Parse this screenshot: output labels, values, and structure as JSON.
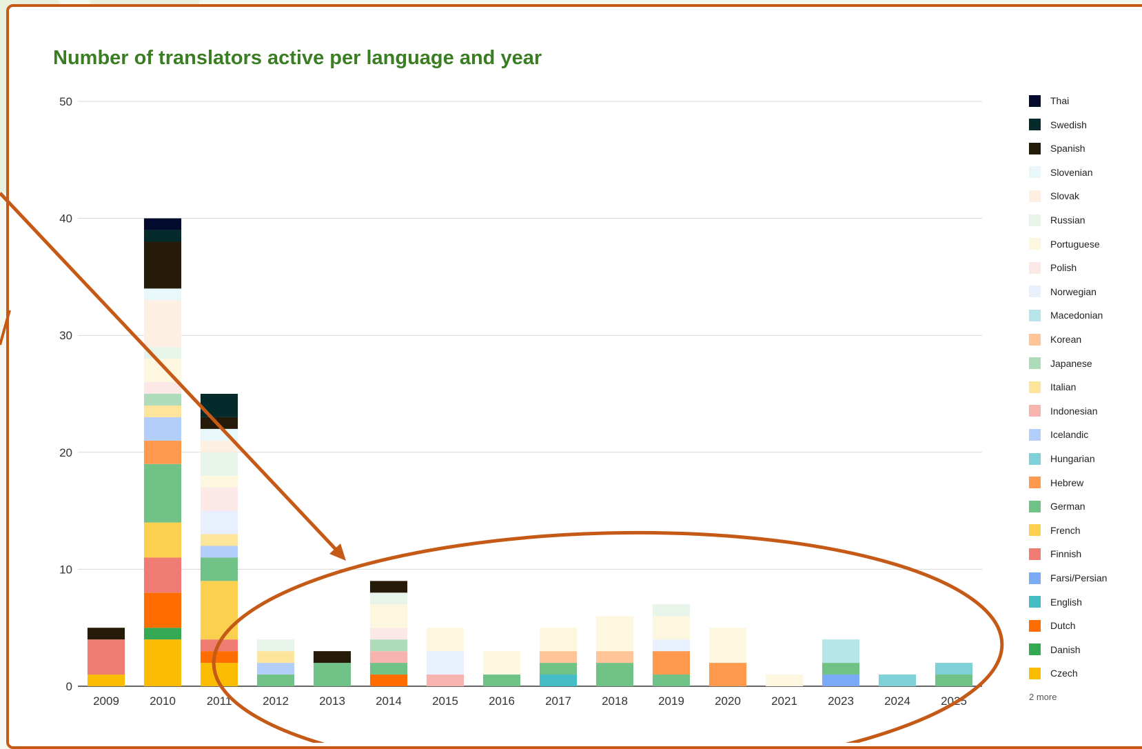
{
  "chart_data": {
    "type": "bar",
    "stacked": true,
    "title": "Number of translators active per language and year",
    "xlabel": "",
    "ylabel": "",
    "ylim": [
      0,
      50
    ],
    "yticks": [
      0,
      10,
      20,
      30,
      40,
      50
    ],
    "grid": true,
    "legend_position": "right",
    "categories": [
      "2009",
      "2010",
      "2011",
      "2012",
      "2013",
      "2014",
      "2015",
      "2016",
      "2017",
      "2018",
      "2019",
      "2020",
      "2021",
      "2023",
      "2024",
      "2025"
    ],
    "series": [
      {
        "name": "Czech",
        "color": "#fbbc04",
        "values": [
          1,
          4,
          2,
          0,
          0,
          0,
          0,
          0,
          0,
          0,
          0,
          0,
          0,
          0,
          0,
          0
        ]
      },
      {
        "name": "Danish",
        "color": "#34a853",
        "values": [
          0,
          1,
          0,
          0,
          0,
          0,
          0,
          0,
          0,
          0,
          0,
          0,
          0,
          0,
          0,
          0
        ]
      },
      {
        "name": "Dutch",
        "color": "#ff6d01",
        "values": [
          0,
          3,
          1,
          0,
          0,
          1,
          0,
          0,
          0,
          0,
          0,
          0,
          0,
          0,
          0,
          0
        ]
      },
      {
        "name": "English",
        "color": "#46bdc6",
        "values": [
          0,
          0,
          0,
          0,
          0,
          0,
          0,
          0,
          1,
          0,
          0,
          0,
          0,
          0,
          0,
          0
        ]
      },
      {
        "name": "Farsi/Persian",
        "color": "#7baaf7",
        "values": [
          0,
          0,
          0,
          0,
          0,
          0,
          0,
          0,
          0,
          0,
          0,
          0,
          0,
          1,
          0,
          0
        ]
      },
      {
        "name": "Finnish",
        "color": "#f07b72",
        "values": [
          3,
          3,
          1,
          0,
          0,
          0,
          0,
          0,
          0,
          0,
          0,
          0,
          0,
          0,
          0,
          0
        ]
      },
      {
        "name": "French",
        "color": "#fcd04f",
        "values": [
          0,
          3,
          5,
          0,
          0,
          0,
          0,
          0,
          0,
          0,
          0,
          0,
          0,
          0,
          0,
          0
        ]
      },
      {
        "name": "German",
        "color": "#71c287",
        "values": [
          0,
          5,
          2,
          1,
          2,
          1,
          0,
          1,
          1,
          2,
          1,
          0,
          0,
          1,
          0,
          1
        ]
      },
      {
        "name": "Hebrew",
        "color": "#ff994d",
        "values": [
          0,
          2,
          0,
          0,
          0,
          0,
          0,
          0,
          0,
          0,
          2,
          2,
          0,
          0,
          0,
          0
        ]
      },
      {
        "name": "Hungarian",
        "color": "#7ed1d7",
        "values": [
          0,
          0,
          0,
          0,
          0,
          0,
          0,
          0,
          0,
          0,
          0,
          0,
          0,
          0,
          1,
          1
        ]
      },
      {
        "name": "Icelandic",
        "color": "#b3cefb",
        "values": [
          0,
          2,
          1,
          1,
          0,
          0,
          0,
          0,
          0,
          0,
          0,
          0,
          0,
          0,
          0,
          0
        ]
      },
      {
        "name": "Indonesian",
        "color": "#f7b4ae",
        "values": [
          0,
          0,
          0,
          0,
          0,
          1,
          1,
          0,
          0,
          0,
          0,
          0,
          0,
          0,
          0,
          0
        ]
      },
      {
        "name": "Italian",
        "color": "#fde49b",
        "values": [
          0,
          1,
          1,
          1,
          0,
          0,
          0,
          0,
          0,
          0,
          0,
          0,
          0,
          0,
          0,
          0
        ]
      },
      {
        "name": "Japanese",
        "color": "#aedcba",
        "values": [
          0,
          1,
          0,
          0,
          0,
          1,
          0,
          0,
          0,
          0,
          0,
          0,
          0,
          0,
          0,
          0
        ]
      },
      {
        "name": "Korean",
        "color": "#ffc599",
        "values": [
          0,
          0,
          0,
          0,
          0,
          0,
          0,
          0,
          1,
          1,
          0,
          0,
          0,
          0,
          0,
          0
        ]
      },
      {
        "name": "Macedonian",
        "color": "#b5e5e8",
        "values": [
          0,
          0,
          0,
          0,
          0,
          0,
          0,
          0,
          0,
          0,
          0,
          0,
          0,
          2,
          0,
          0
        ]
      },
      {
        "name": "Norwegian",
        "color": "#e8f0fe",
        "values": [
          0,
          0,
          2,
          0,
          0,
          0,
          2,
          0,
          0,
          0,
          1,
          0,
          0,
          0,
          0,
          0
        ]
      },
      {
        "name": "Polish",
        "color": "#fce8e6",
        "values": [
          0,
          1,
          2,
          0,
          0,
          1,
          0,
          0,
          0,
          0,
          0,
          0,
          0,
          0,
          0,
          0
        ]
      },
      {
        "name": "Portuguese",
        "color": "#fef7e0",
        "values": [
          0,
          2,
          1,
          0,
          0,
          2,
          2,
          2,
          2,
          3,
          2,
          3,
          1,
          0,
          0,
          0
        ]
      },
      {
        "name": "Russian",
        "color": "#e6f4ea",
        "values": [
          0,
          1,
          2,
          1,
          0,
          1,
          0,
          0,
          0,
          0,
          1,
          0,
          0,
          0,
          0,
          0
        ]
      },
      {
        "name": "Slovak",
        "color": "#feefe3",
        "values": [
          0,
          4,
          1,
          0,
          0,
          0,
          0,
          0,
          0,
          0,
          0,
          0,
          0,
          0,
          0,
          0
        ]
      },
      {
        "name": "Slovenian",
        "color": "#e8f7f9",
        "values": [
          0,
          1,
          1,
          0,
          0,
          0,
          0,
          0,
          0,
          0,
          0,
          0,
          0,
          0,
          0,
          0
        ]
      },
      {
        "name": "Spanish",
        "color": "#261a08",
        "values": [
          1,
          4,
          1,
          0,
          1,
          1,
          0,
          0,
          0,
          0,
          0,
          0,
          0,
          0,
          0,
          0
        ]
      },
      {
        "name": "Swedish",
        "color": "#042a2b",
        "values": [
          0,
          1,
          2,
          0,
          0,
          0,
          0,
          0,
          0,
          0,
          0,
          0,
          0,
          0,
          0,
          0
        ]
      },
      {
        "name": "Thai",
        "color": "#020a2e",
        "values": [
          0,
          1,
          0,
          0,
          0,
          0,
          0,
          0,
          0,
          0,
          0,
          0,
          0,
          0,
          0,
          0
        ]
      }
    ],
    "legend_more": "2 more"
  },
  "colors": {
    "annotation": "#c55a17",
    "title": "#3a7d22",
    "gridline": "#d9d9d9"
  }
}
